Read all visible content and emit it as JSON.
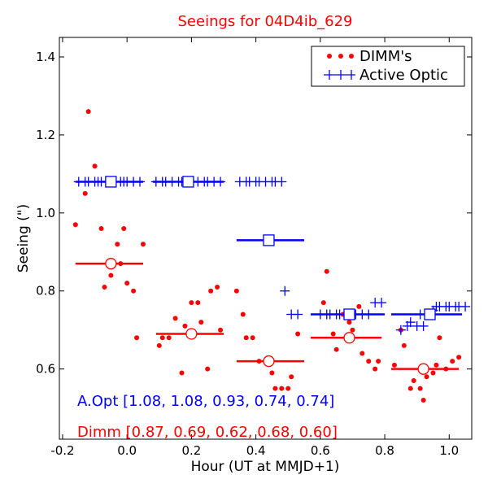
{
  "chart_data": {
    "type": "scatter",
    "title": "Seeings for 04D4ib_629",
    "xlabel": "Hour (UT at MMJD+1)",
    "ylabel": "Seeing (\")",
    "xlim": [
      -0.21,
      1.07
    ],
    "ylim": [
      0.42,
      1.45
    ],
    "xticks": [
      -0.2,
      0.0,
      0.2,
      0.4,
      0.6,
      0.8,
      1.0
    ],
    "xtick_labels": [
      "-0.2",
      "0.0",
      "0.2",
      "0.4",
      "0.6",
      "0.8",
      "1.0"
    ],
    "yticks": [
      0.6,
      0.8,
      1.0,
      1.2,
      1.4
    ],
    "ytick_labels": [
      "0.6",
      "0.8",
      "1.0",
      "1.2",
      "1.4"
    ],
    "colors": {
      "dimm": "#ff0000",
      "aopt": "#0000ff",
      "title": "#ff0000"
    },
    "legend": {
      "position": "top-right",
      "entries": [
        {
          "label": "DIMM's",
          "marker": "dot",
          "color": "#ff0000"
        },
        {
          "label": "Active Optic",
          "marker": "plus",
          "color": "#0000ff"
        }
      ]
    },
    "series": [
      {
        "name": "DIMM's",
        "marker": "dot",
        "color": "#ff0000",
        "points": [
          [
            -0.16,
            0.97
          ],
          [
            -0.13,
            1.05
          ],
          [
            -0.12,
            1.26
          ],
          [
            -0.1,
            1.12
          ],
          [
            -0.08,
            0.96
          ],
          [
            -0.07,
            0.81
          ],
          [
            -0.05,
            0.84
          ],
          [
            -0.03,
            0.92
          ],
          [
            -0.02,
            0.87
          ],
          [
            -0.01,
            0.96
          ],
          [
            0.0,
            0.82
          ],
          [
            0.02,
            0.8
          ],
          [
            0.03,
            0.68
          ],
          [
            0.05,
            0.92
          ],
          [
            0.1,
            0.66
          ],
          [
            0.11,
            0.68
          ],
          [
            0.13,
            0.68
          ],
          [
            0.15,
            0.73
          ],
          [
            0.17,
            0.59
          ],
          [
            0.18,
            0.71
          ],
          [
            0.2,
            0.77
          ],
          [
            0.22,
            0.77
          ],
          [
            0.23,
            0.72
          ],
          [
            0.25,
            0.6
          ],
          [
            0.26,
            0.8
          ],
          [
            0.28,
            0.81
          ],
          [
            0.29,
            0.7
          ],
          [
            0.34,
            0.8
          ],
          [
            0.36,
            0.74
          ],
          [
            0.37,
            0.68
          ],
          [
            0.39,
            0.68
          ],
          [
            0.41,
            0.62
          ],
          [
            0.43,
            0.62
          ],
          [
            0.45,
            0.59
          ],
          [
            0.46,
            0.55
          ],
          [
            0.48,
            0.55
          ],
          [
            0.5,
            0.55
          ],
          [
            0.51,
            0.58
          ],
          [
            0.53,
            0.69
          ],
          [
            0.61,
            0.77
          ],
          [
            0.62,
            0.85
          ],
          [
            0.64,
            0.69
          ],
          [
            0.65,
            0.65
          ],
          [
            0.67,
            0.74
          ],
          [
            0.69,
            0.72
          ],
          [
            0.7,
            0.7
          ],
          [
            0.72,
            0.76
          ],
          [
            0.73,
            0.64
          ],
          [
            0.75,
            0.62
          ],
          [
            0.77,
            0.6
          ],
          [
            0.78,
            0.62
          ],
          [
            0.83,
            0.61
          ],
          [
            0.85,
            0.7
          ],
          [
            0.86,
            0.66
          ],
          [
            0.88,
            0.55
          ],
          [
            0.89,
            0.57
          ],
          [
            0.91,
            0.55
          ],
          [
            0.92,
            0.52
          ],
          [
            0.93,
            0.58
          ],
          [
            0.95,
            0.59
          ],
          [
            0.96,
            0.61
          ],
          [
            0.97,
            0.68
          ],
          [
            0.99,
            0.6
          ],
          [
            1.01,
            0.62
          ],
          [
            1.03,
            0.63
          ]
        ]
      },
      {
        "name": "Active Optic",
        "marker": "plus",
        "color": "#0000ff",
        "points": [
          [
            -0.15,
            1.08
          ],
          [
            -0.13,
            1.08
          ],
          [
            -0.12,
            1.08
          ],
          [
            -0.1,
            1.08
          ],
          [
            -0.09,
            1.08
          ],
          [
            -0.08,
            1.08
          ],
          [
            -0.06,
            1.08
          ],
          [
            -0.05,
            1.08
          ],
          [
            -0.04,
            1.08
          ],
          [
            -0.02,
            1.08
          ],
          [
            -0.01,
            1.08
          ],
          [
            0.0,
            1.08
          ],
          [
            0.02,
            1.08
          ],
          [
            0.04,
            1.08
          ],
          [
            0.09,
            1.08
          ],
          [
            0.11,
            1.08
          ],
          [
            0.12,
            1.08
          ],
          [
            0.14,
            1.08
          ],
          [
            0.16,
            1.08
          ],
          [
            0.17,
            1.08
          ],
          [
            0.19,
            1.08
          ],
          [
            0.2,
            1.08
          ],
          [
            0.22,
            1.08
          ],
          [
            0.24,
            1.08
          ],
          [
            0.25,
            1.08
          ],
          [
            0.27,
            1.08
          ],
          [
            0.29,
            1.08
          ],
          [
            0.35,
            1.08
          ],
          [
            0.37,
            1.08
          ],
          [
            0.38,
            1.08
          ],
          [
            0.4,
            1.08
          ],
          [
            0.41,
            1.08
          ],
          [
            0.43,
            1.08
          ],
          [
            0.45,
            1.08
          ],
          [
            0.46,
            1.08
          ],
          [
            0.48,
            1.08
          ],
          [
            0.49,
            0.8
          ],
          [
            0.51,
            0.74
          ],
          [
            0.53,
            0.74
          ],
          [
            0.6,
            0.74
          ],
          [
            0.62,
            0.74
          ],
          [
            0.63,
            0.74
          ],
          [
            0.65,
            0.74
          ],
          [
            0.66,
            0.74
          ],
          [
            0.68,
            0.74
          ],
          [
            0.7,
            0.74
          ],
          [
            0.71,
            0.74
          ],
          [
            0.73,
            0.74
          ],
          [
            0.75,
            0.74
          ],
          [
            0.77,
            0.77
          ],
          [
            0.79,
            0.77
          ],
          [
            0.85,
            0.7
          ],
          [
            0.87,
            0.71
          ],
          [
            0.88,
            0.72
          ],
          [
            0.9,
            0.71
          ],
          [
            0.91,
            0.74
          ],
          [
            0.92,
            0.71
          ],
          [
            0.93,
            0.74
          ],
          [
            0.95,
            0.75
          ],
          [
            0.96,
            0.76
          ],
          [
            0.97,
            0.76
          ],
          [
            0.99,
            0.76
          ],
          [
            1.0,
            0.76
          ],
          [
            1.02,
            0.76
          ],
          [
            1.03,
            0.76
          ],
          [
            1.05,
            0.76
          ]
        ]
      }
    ],
    "averages": {
      "aopt": [
        {
          "x_start": -0.16,
          "x_end": 0.05,
          "x_mean": -0.05,
          "value": 1.08
        },
        {
          "x_start": 0.08,
          "x_end": 0.3,
          "x_mean": 0.19,
          "value": 1.08
        },
        {
          "x_start": 0.34,
          "x_end": 0.55,
          "x_mean": 0.44,
          "value": 0.93
        },
        {
          "x_start": 0.57,
          "x_end": 0.8,
          "x_mean": 0.69,
          "value": 0.74
        },
        {
          "x_start": 0.82,
          "x_end": 1.04,
          "x_mean": 0.94,
          "value": 0.74
        }
      ],
      "dimm": [
        {
          "x_start": -0.16,
          "x_end": 0.05,
          "x_mean": -0.05,
          "value": 0.87
        },
        {
          "x_start": 0.09,
          "x_end": 0.3,
          "x_mean": 0.2,
          "value": 0.69
        },
        {
          "x_start": 0.34,
          "x_end": 0.55,
          "x_mean": 0.44,
          "value": 0.62
        },
        {
          "x_start": 0.57,
          "x_end": 0.79,
          "x_mean": 0.69,
          "value": 0.68
        },
        {
          "x_start": 0.82,
          "x_end": 1.03,
          "x_mean": 0.92,
          "value": 0.6
        }
      ]
    },
    "annotations": {
      "aopt_text": "A.Opt [1.08, 1.08, 0.93, 0.74, 0.74]",
      "dimm_text": "Dimm [0.87, 0.69, 0.62, 0.68, 0.60]"
    }
  }
}
